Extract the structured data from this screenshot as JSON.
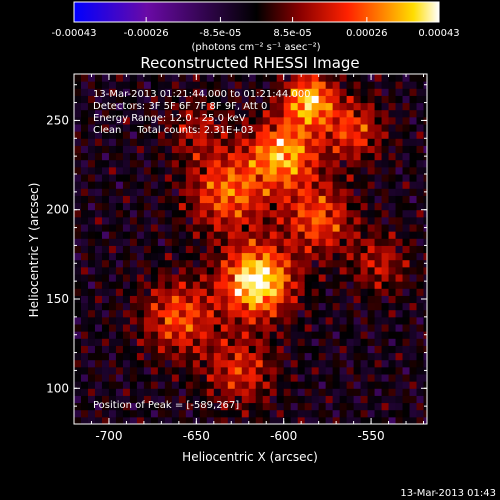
{
  "chart_data": {
    "type": "heatmap",
    "title": "Reconstructed RHESSI Image",
    "xlabel": "Heliocentric X (arcsec)",
    "ylabel": "Heliocentric Y (arcsec)",
    "xlim": [
      -720,
      -518
    ],
    "ylim": [
      80,
      276
    ],
    "x_ticks": [
      "-700",
      "-650",
      "-600",
      "-550"
    ],
    "y_ticks": [
      "100",
      "150",
      "200",
      "250"
    ],
    "colorbar": {
      "unit_label": "(photons cm⁻² s⁻¹ asec⁻²)",
      "ticks": [
        "-0.00043",
        "-0.00026",
        "-8.5e-05",
        "8.5e-05",
        "0.00026",
        "0.00043"
      ],
      "range": [
        -0.00043,
        0.00043
      ],
      "colors": [
        "#0000ff",
        "#6a0aa6",
        "#000000",
        "#8a0000",
        "#ff2200",
        "#ff8800",
        "#ffdd00",
        "#ffffff"
      ]
    },
    "info": [
      "13-Mar-2013 01:21:44.000 to 01:21:44.000",
      "Detectors: 3F 5F 6F 7F 8F 9F, Att 0",
      "Energy Range: 12.0 - 25.0 keV",
      "Clean     Total counts: 2.31E+03"
    ],
    "peak_label": "Position of Peak = [-589,267]",
    "peak": [
      -589,
      267
    ],
    "grid": false
  },
  "footer_timestamp": "13-Mar-2013 01:43"
}
